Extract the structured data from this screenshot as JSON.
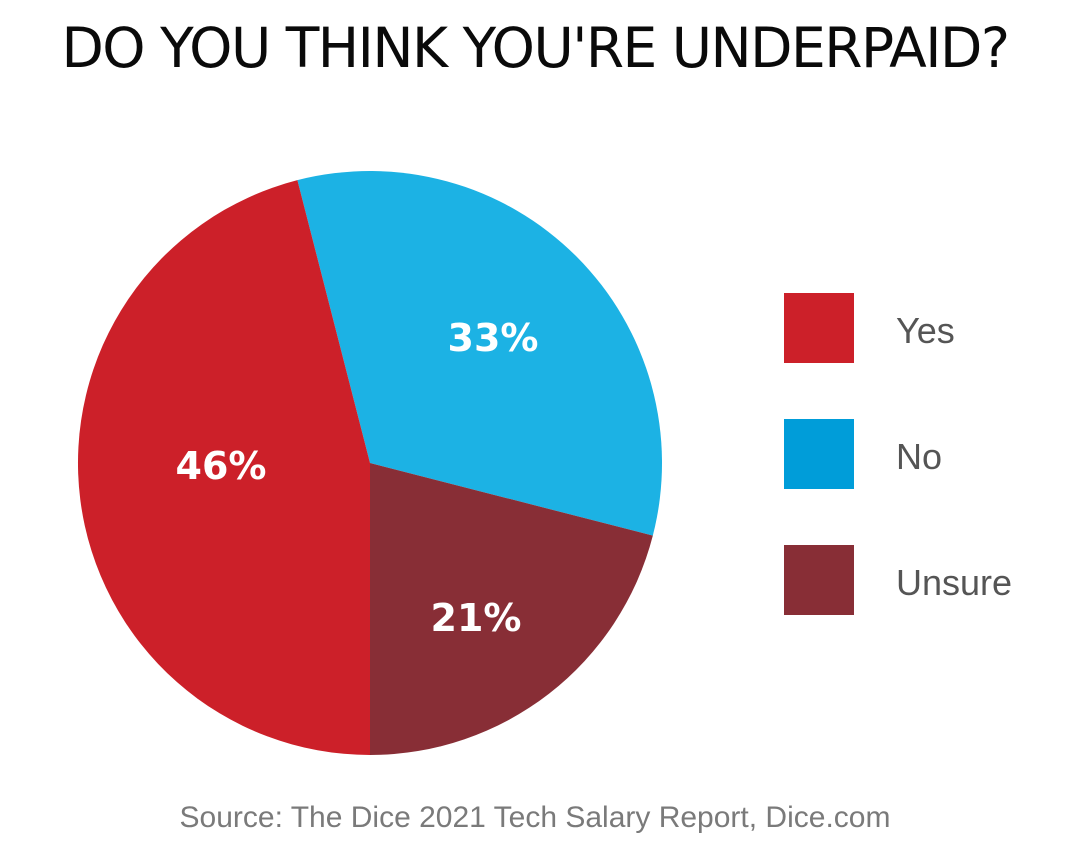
{
  "title": "DO YOU THINK YOU'RE UNDERPAID?",
  "source": "Source: The Dice 2021 Tech Salary Report, Dice.com",
  "chart_data": {
    "type": "pie",
    "title": "DO YOU THINK YOU'RE UNDERPAID?",
    "legend_position": "right",
    "slices": [
      {
        "label": "Yes",
        "value": 46,
        "display": "46%",
        "color": "#cc2029"
      },
      {
        "label": "No",
        "value": 33,
        "display": "33%",
        "color": "#1cb2e4"
      },
      {
        "label": "Unsure",
        "value": 21,
        "display": "21%",
        "color": "#882e36"
      }
    ],
    "legend": [
      {
        "label": "Yes",
        "color": "#cc2029"
      },
      {
        "label": "No",
        "color": "#009dd9"
      },
      {
        "label": "Unsure",
        "color": "#882e36"
      }
    ]
  }
}
